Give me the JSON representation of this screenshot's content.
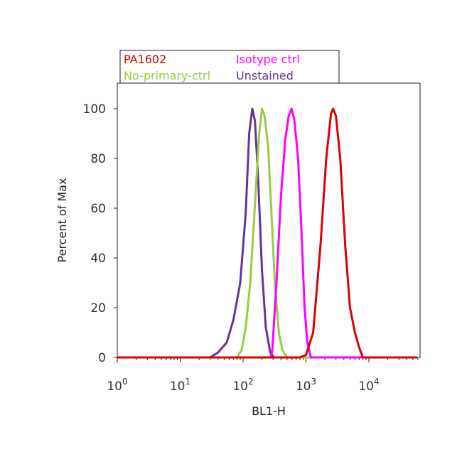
{
  "chart_data": {
    "type": "line",
    "title": "",
    "xlabel": "BL1-H",
    "ylabel": "Percent of Max",
    "xscale": "log",
    "xlim": [
      1,
      60000
    ],
    "ylim": [
      0,
      110
    ],
    "y_ticks": [
      "0",
      "20",
      "40",
      "60",
      "80",
      "100"
    ],
    "x_ticks": [
      {
        "base": "10",
        "exp": "0"
      },
      {
        "base": "10",
        "exp": "1"
      },
      {
        "base": "10",
        "exp": "2"
      },
      {
        "base": "10",
        "exp": "3"
      },
      {
        "base": "10",
        "exp": "4"
      }
    ],
    "legend_position": "top",
    "grid": false,
    "series": [
      {
        "name": "PA1602",
        "color": "#dd0000",
        "x": [
          1,
          800,
          1000,
          1300,
          1700,
          2100,
          2500,
          2700,
          3000,
          3500,
          4200,
          5000,
          6000,
          7000,
          8000,
          60000
        ],
        "y": [
          0,
          0,
          1,
          10,
          45,
          80,
          98,
          100,
          97,
          80,
          45,
          20,
          10,
          4,
          0,
          0
        ]
      },
      {
        "name": "Isotype ctrl",
        "color": "#ff00ff",
        "x": [
          1,
          270,
          290,
          340,
          400,
          470,
          530,
          590,
          650,
          750,
          850,
          950,
          1050,
          1200,
          60000
        ],
        "y": [
          0,
          0,
          2,
          30,
          65,
          88,
          97,
          100,
          96,
          80,
          50,
          20,
          6,
          0,
          0
        ]
      },
      {
        "name": "No-primary-ctrl",
        "color": "#99cc44",
        "x": [
          1,
          80,
          95,
          110,
          130,
          155,
          180,
          200,
          220,
          250,
          280,
          320,
          370,
          420,
          500,
          60000
        ],
        "y": [
          0,
          0,
          3,
          12,
          30,
          62,
          90,
          100,
          97,
          85,
          60,
          30,
          10,
          3,
          0,
          0
        ]
      },
      {
        "name": "Unstained",
        "color": "#663399",
        "x": [
          1,
          30,
          40,
          55,
          70,
          90,
          110,
          125,
          140,
          155,
          175,
          200,
          230,
          270,
          310,
          60000
        ],
        "y": [
          0,
          0,
          2,
          6,
          15,
          30,
          58,
          90,
          100,
          95,
          70,
          35,
          12,
          2,
          0,
          0
        ]
      }
    ]
  }
}
